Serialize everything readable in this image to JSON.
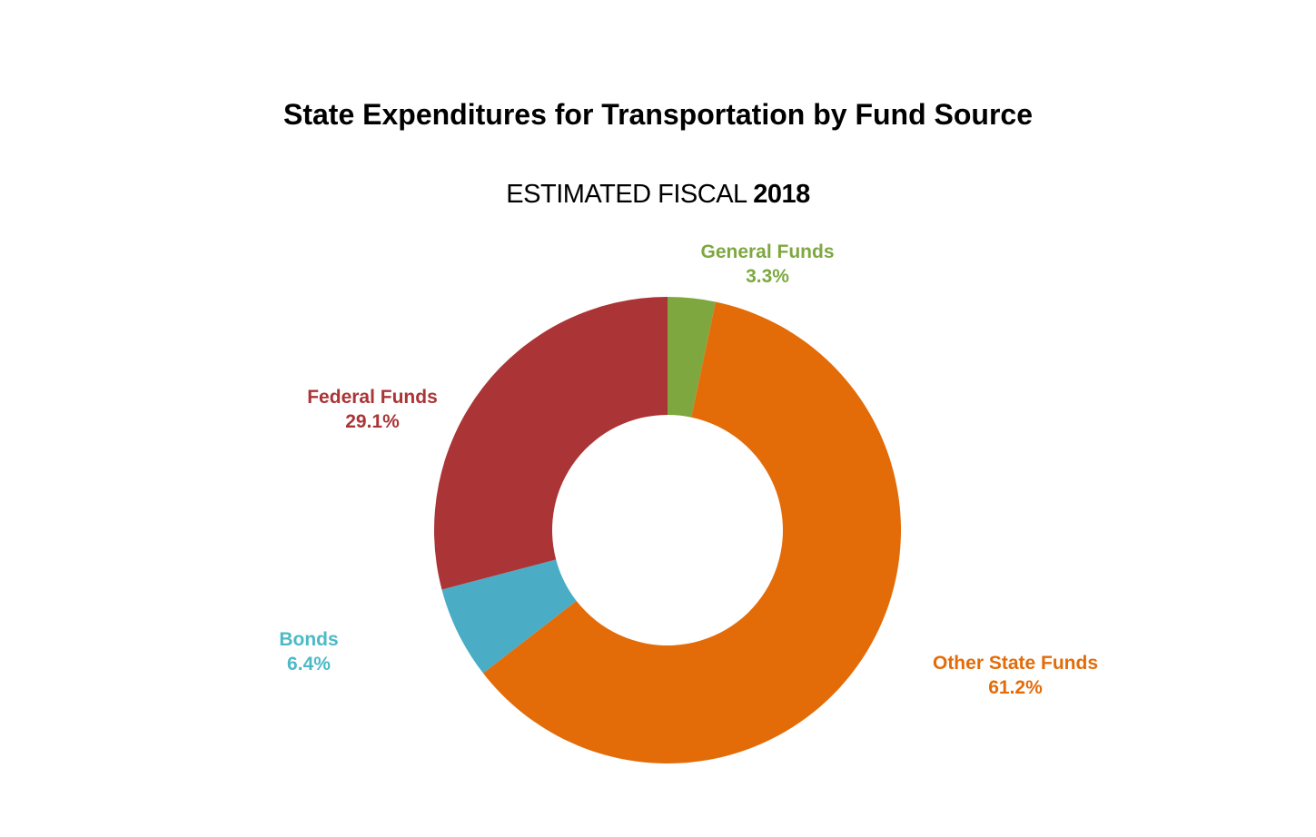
{
  "chart_data": {
    "type": "pie",
    "donut": true,
    "title": "State Expenditures for Transportation by Fund Source",
    "subtitle": {
      "prefix": "ESTIMATED FISCAL",
      "year": "2018"
    },
    "slices": [
      {
        "name": "General Funds",
        "value": 3.3,
        "label": "3.3%",
        "color": "#7EA83F"
      },
      {
        "name": "Other State Funds",
        "value": 61.2,
        "label": "61.2%",
        "color": "#E36C09"
      },
      {
        "name": "Bonds",
        "value": 6.4,
        "label": "6.4%",
        "color": "#4BACC6",
        "label_color": "#4BBAC6"
      },
      {
        "name": "Federal Funds",
        "value": 29.1,
        "label": "29.1%",
        "color": "#AB3436"
      }
    ],
    "start": "top",
    "direction": "clockwise",
    "legend": "none"
  }
}
